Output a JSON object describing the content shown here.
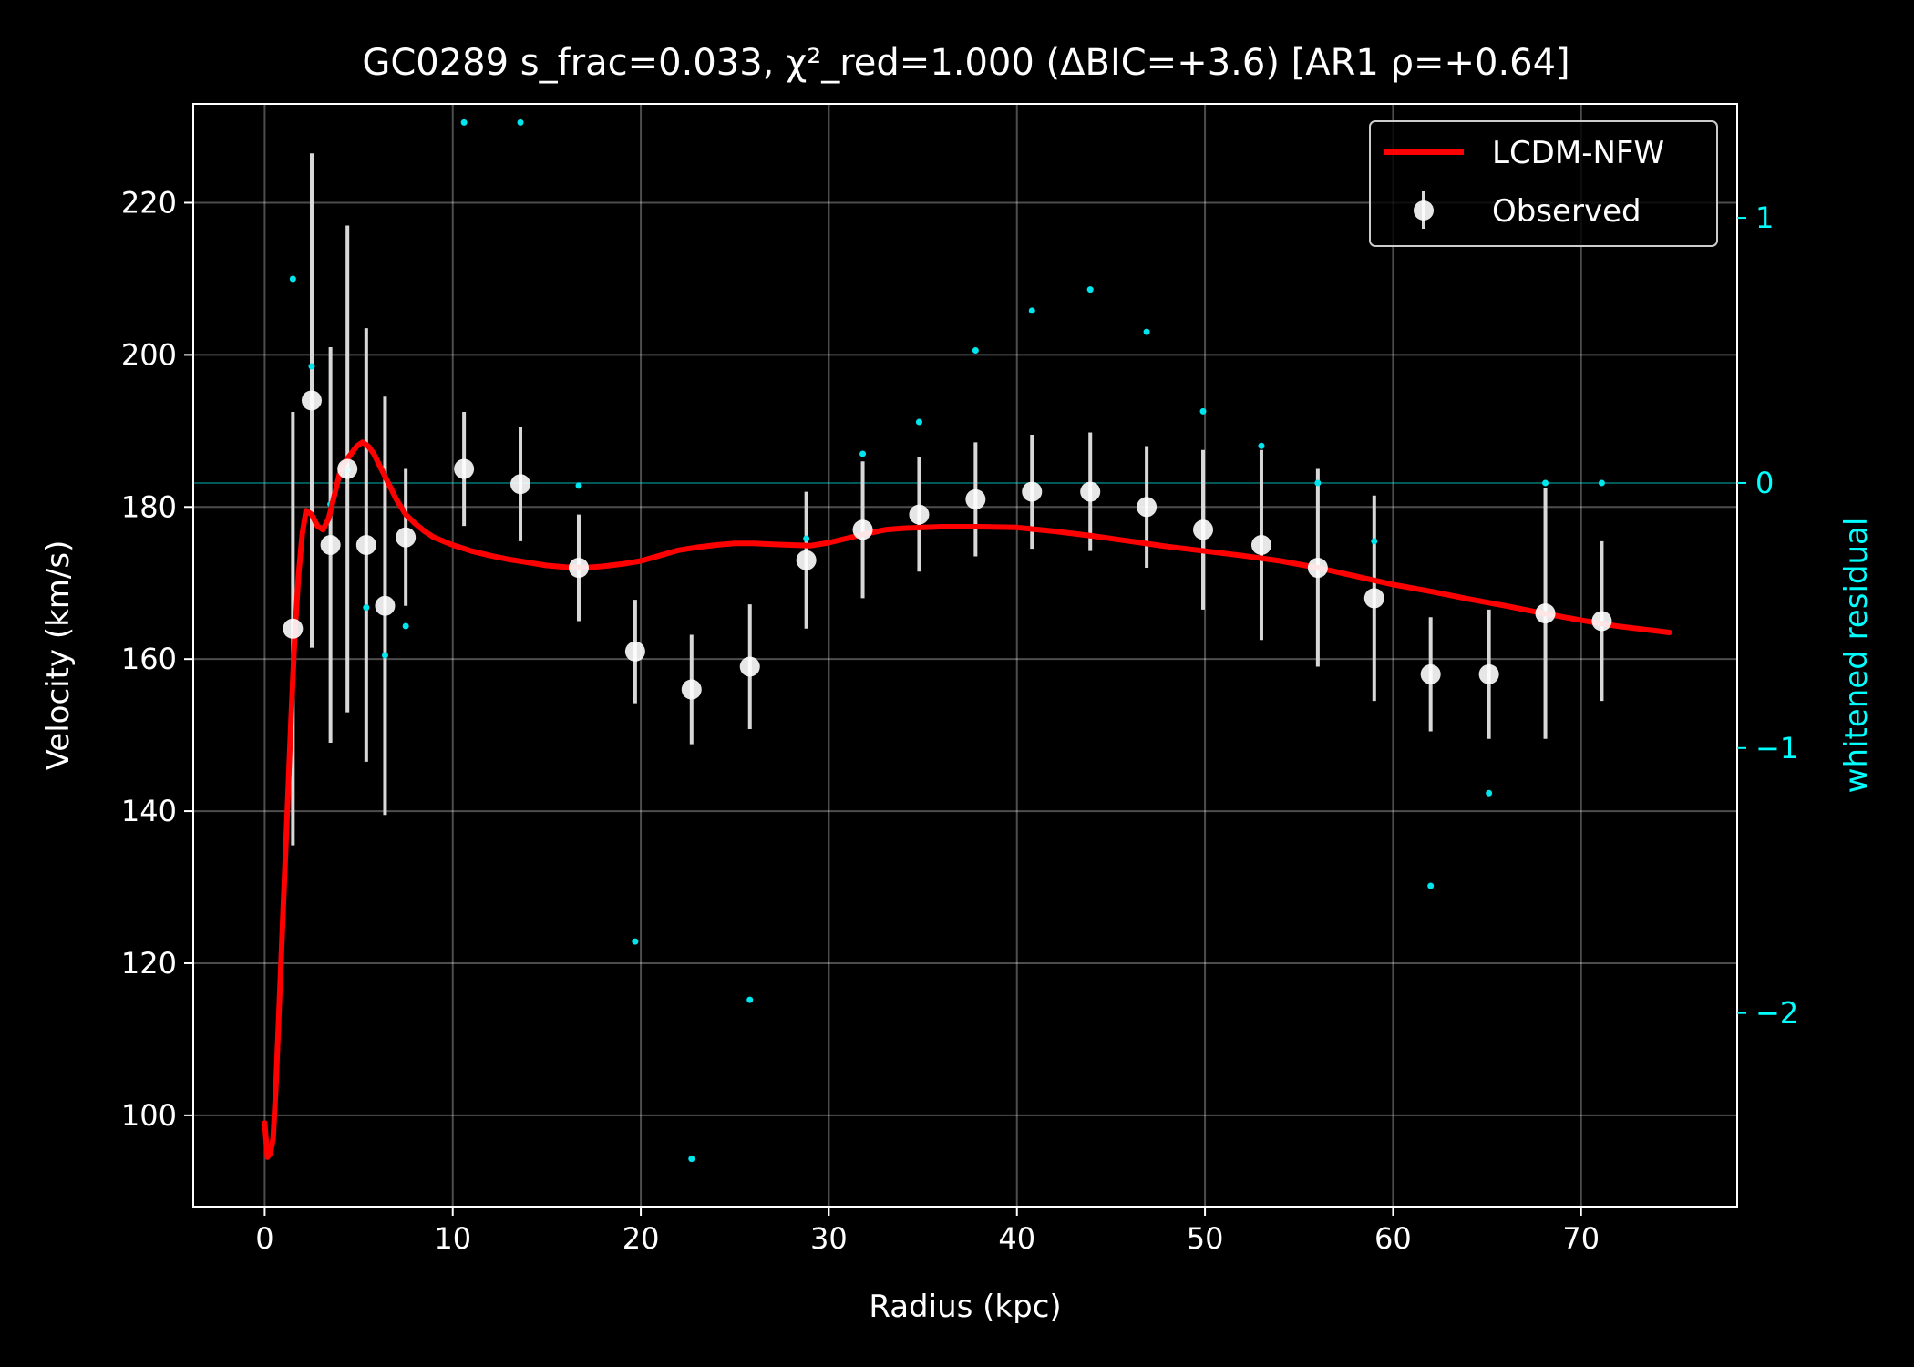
{
  "chart_data": {
    "type": "scatter",
    "title": "GC0289  s_frac=0.033, χ²_red=1.000  (ΔBIC=+3.6) [AR1 ρ=+0.64]",
    "xlabel": "Radius (kpc)",
    "ylabel": "Velocity (km/s)",
    "y2label": "whitened residual",
    "xlim": [
      -3.8,
      78.3
    ],
    "ylim": [
      88,
      233
    ],
    "y2lim": [
      -2.73,
      1.43
    ],
    "xticks": [
      0,
      10,
      20,
      30,
      40,
      50,
      60,
      70
    ],
    "yticks": [
      100,
      120,
      140,
      160,
      180,
      200,
      220
    ],
    "y2ticks": [
      -2,
      -1,
      0,
      1
    ],
    "y2ticklabels": [
      "−2",
      "−1",
      "0",
      "1"
    ],
    "grid": true,
    "legend_position": "top-right",
    "colors": {
      "background": "#000000",
      "foreground": "#ffffff",
      "model": "#ff0000",
      "observed": "#ffffff",
      "errorbar": "#d8d8d8",
      "residual": "#00e5ee",
      "axis2": "#00ffff"
    },
    "series": [
      {
        "name": "Observed",
        "kind": "errorbar",
        "x": [
          1.5,
          2.5,
          3.5,
          4.4,
          5.4,
          6.4,
          7.5,
          10.6,
          13.6,
          16.7,
          19.7,
          22.7,
          25.8,
          28.8,
          31.8,
          34.8,
          37.8,
          40.8,
          43.9,
          46.9,
          49.9,
          53.0,
          56.0,
          59.0,
          62.0,
          65.1,
          68.1,
          71.1
        ],
        "y": [
          164,
          194,
          175,
          185,
          175,
          167,
          176,
          185,
          183,
          172,
          161,
          156,
          159,
          173,
          177,
          179,
          181,
          182,
          182,
          180,
          177,
          175,
          172,
          168,
          158,
          158,
          166,
          165
        ],
        "yerr": [
          28.5,
          32.5,
          26,
          32,
          28.5,
          27.5,
          9,
          7.5,
          7.5,
          7,
          6.8,
          7.2,
          8.2,
          9,
          9,
          7.5,
          7.5,
          7.5,
          7.8,
          8,
          10.5,
          12.5,
          13,
          13.5,
          7.5,
          8.5,
          16.5,
          10.5
        ]
      },
      {
        "name": "LCDM-NFW",
        "kind": "line",
        "x": [
          0,
          0.15,
          0.3,
          0.45,
          0.6,
          0.8,
          1.0,
          1.2,
          1.4,
          1.6,
          1.8,
          2.0,
          2.2,
          2.5,
          2.8,
          3.1,
          3.4,
          3.7,
          4.0,
          4.3,
          4.6,
          4.9,
          5.2,
          5.5,
          5.8,
          6.1,
          6.4,
          6.7,
          7.0,
          7.5,
          8.0,
          8.5,
          9.0,
          10,
          11,
          12,
          13,
          14,
          15,
          16,
          17,
          18,
          19,
          20,
          21,
          22,
          23,
          24,
          25,
          26,
          27,
          28,
          29,
          30,
          31,
          32,
          33,
          34,
          35,
          36,
          38,
          40,
          42,
          44,
          46,
          48,
          50,
          52,
          54,
          56,
          58,
          60,
          62,
          64,
          66,
          68,
          70,
          72,
          74.7
        ],
        "y": [
          99,
          94.5,
          95,
          97,
          104,
          116,
          128,
          140,
          152,
          163,
          171,
          176.5,
          179.5,
          179,
          177.5,
          177,
          178.5,
          181.5,
          184.5,
          186,
          187,
          188,
          188.5,
          188,
          187,
          185.5,
          184,
          182.5,
          181,
          179,
          177.8,
          176.8,
          176,
          175,
          174.2,
          173.6,
          173.1,
          172.7,
          172.3,
          172.1,
          172.0,
          172.2,
          172.5,
          172.9,
          173.6,
          174.3,
          174.7,
          175.0,
          175.2,
          175.2,
          175.1,
          175.0,
          174.9,
          175.3,
          175.9,
          176.5,
          177.0,
          177.2,
          177.3,
          177.4,
          177.4,
          177.3,
          176.8,
          176.2,
          175.5,
          174.8,
          174.2,
          173.6,
          172.9,
          172.0,
          170.9,
          169.8,
          168.9,
          167.9,
          167.0,
          166.0,
          165.1,
          164.3,
          163.5
        ]
      },
      {
        "name": "",
        "kind": "scatter",
        "axis": "right",
        "x": [
          1.5,
          2.5,
          3.5,
          4.4,
          5.4,
          6.4,
          7.5,
          10.6,
          13.6,
          16.7,
          19.7,
          22.7,
          25.8,
          28.8,
          31.8,
          34.8,
          37.8,
          40.8,
          43.9,
          46.9,
          49.9,
          53.0,
          56.0,
          59.0,
          62.0,
          65.1,
          68.1,
          71.1
        ],
        "y": [
          0.77,
          0.44,
          -0.08,
          0.05,
          -0.47,
          -0.65,
          -0.54,
          1.36,
          1.36,
          -0.01,
          -1.73,
          -2.55,
          -1.95,
          -0.21,
          0.11,
          0.23,
          0.5,
          0.65,
          0.73,
          0.57,
          0.27,
          0.14,
          0.0,
          -0.22,
          -1.52,
          -1.17,
          0.0,
          0.0
        ]
      }
    ]
  }
}
